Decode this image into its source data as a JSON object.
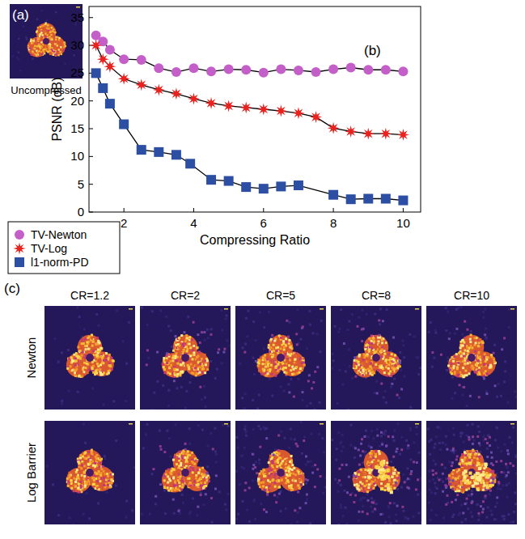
{
  "panel_a": {
    "label": "(a)",
    "caption": "Uncompressed"
  },
  "chart_data": {
    "type": "line",
    "annotations": [
      "(b)"
    ],
    "x_label": "Compressing Ratio",
    "y_label": "PSNR (dB)",
    "xlim": [
      1,
      10.5
    ],
    "xticks": [
      2,
      4,
      6,
      8,
      10
    ],
    "ylim": [
      0,
      37
    ],
    "yticks": [
      0,
      5,
      10,
      15,
      20,
      25,
      30,
      35
    ],
    "grid": false,
    "legend": "outside-bottom-left",
    "series": [
      {
        "name": "TV-Newton",
        "color": "#c45ec8",
        "marker": "circle",
        "line_style": "solid",
        "x": [
          1.2,
          1.4,
          1.6,
          2,
          2.5,
          3,
          3.5,
          4,
          4.5,
          5,
          5.5,
          6,
          6.5,
          7,
          7.5,
          8,
          8.5,
          9,
          9.5,
          10
        ],
        "values": [
          31.8,
          30.7,
          29.2,
          27.5,
          27.4,
          25.9,
          25.2,
          25.9,
          25.3,
          25.7,
          25.6,
          25.1,
          25.7,
          25.5,
          25.2,
          25.7,
          26.0,
          25.6,
          25.6,
          25.3
        ]
      },
      {
        "name": "TV-Log",
        "color": "#e8231f",
        "marker": "star",
        "line_style": "solid",
        "x": [
          1.2,
          1.4,
          1.6,
          2,
          2.5,
          3,
          3.5,
          4,
          4.5,
          5,
          5.5,
          6,
          6.5,
          7,
          7.5,
          8,
          8.5,
          9,
          9.5,
          10
        ],
        "values": [
          30.0,
          27.5,
          26.2,
          24.0,
          22.9,
          22.0,
          21.3,
          20.4,
          19.6,
          19.1,
          18.8,
          18.5,
          18.2,
          17.8,
          17.1,
          15.1,
          14.5,
          14.1,
          14.1,
          13.9
        ]
      },
      {
        "name": "l1-norm-PD",
        "color": "#2c4fa3",
        "marker": "square",
        "line_style": "solid",
        "x": [
          1.2,
          1.4,
          1.6,
          2,
          2.5,
          3,
          3.5,
          3.9,
          4.5,
          5,
          5.5,
          6,
          6.5,
          7,
          8,
          8.5,
          9,
          9.5,
          10
        ],
        "values": [
          25.0,
          22.3,
          19.5,
          15.8,
          11.2,
          10.8,
          10.3,
          8.7,
          5.8,
          5.6,
          4.5,
          4.2,
          4.6,
          4.8,
          3.1,
          2.3,
          2.4,
          2.4,
          2.1
        ]
      }
    ]
  },
  "panel_c": {
    "label": "(c)",
    "columns": [
      "CR=1.2",
      "CR=2",
      "CR=5",
      "CR=8",
      "CR=10"
    ],
    "rows": [
      "Newton",
      "Log Barrier"
    ]
  }
}
